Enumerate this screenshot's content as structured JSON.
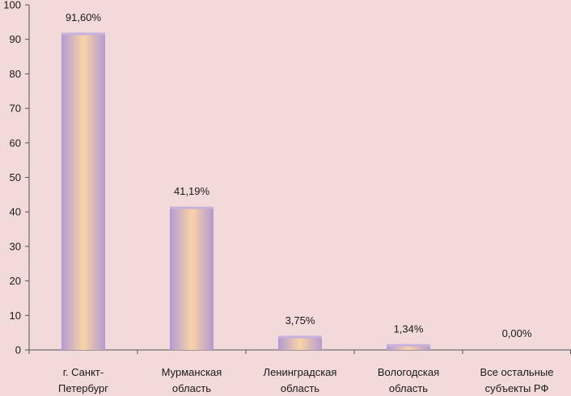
{
  "chart_data": {
    "type": "bar",
    "categories": [
      [
        "г. Санкт-",
        "Петербург"
      ],
      [
        "Мурманская",
        "область"
      ],
      [
        "Ленинградская",
        "область"
      ],
      [
        "Вологодская",
        "область"
      ],
      [
        "Все остальные",
        "субъекты РФ"
      ]
    ],
    "values": [
      91.6,
      41.19,
      3.75,
      1.34,
      0.0
    ],
    "data_labels": [
      "91,60%",
      "41,19%",
      "3,75%",
      "1,34%",
      "0,00%"
    ],
    "ylim": [
      0,
      100
    ],
    "yticks": [
      "0",
      "10",
      "20",
      "30",
      "40",
      "50",
      "60",
      "70",
      "80",
      "90",
      "100"
    ],
    "grid": false,
    "legend": "none",
    "colors": {
      "background": "#f2d9da",
      "bar_edge": "#b59ad3",
      "bar_center": "#f8d2a8",
      "axis": "#555555"
    }
  }
}
